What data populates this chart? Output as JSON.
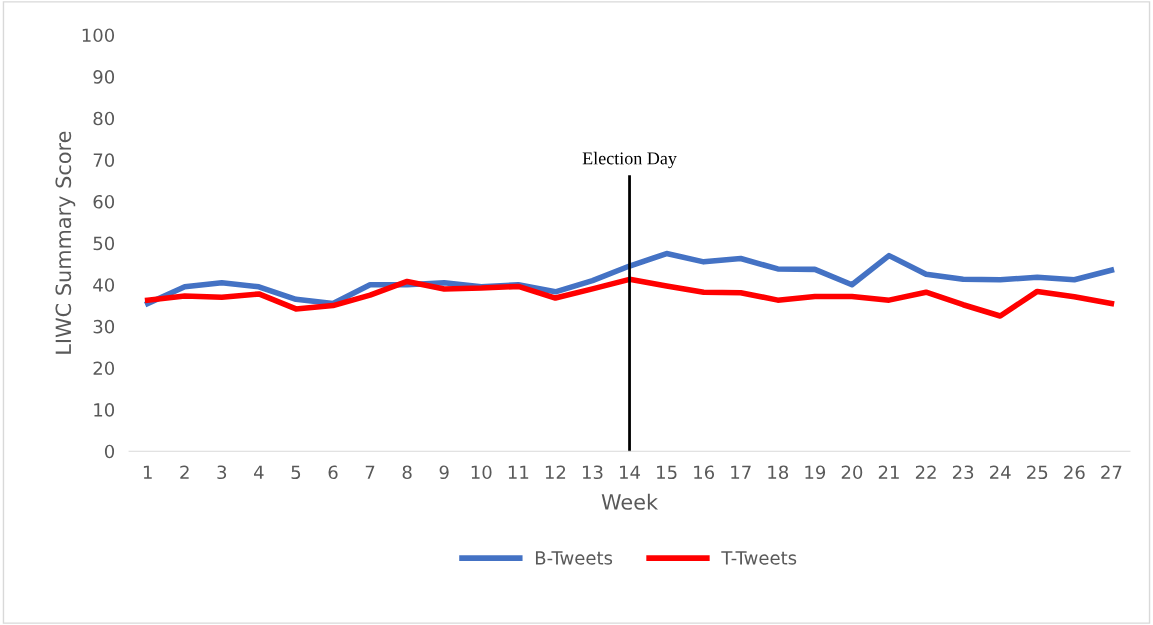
{
  "chart_data": {
    "type": "line",
    "xlabel": "Week",
    "ylabel": "LIWC Summary Score",
    "categories": [
      "1",
      "2",
      "3",
      "4",
      "5",
      "6",
      "7",
      "8",
      "9",
      "10",
      "11",
      "12",
      "13",
      "14",
      "15",
      "16",
      "17",
      "18",
      "19",
      "20",
      "21",
      "22",
      "23",
      "24",
      "25",
      "26",
      "27"
    ],
    "series": [
      {
        "name": "B-Tweets",
        "color": "#4472c4",
        "values": [
          35.5,
          39.5,
          40.5,
          39.5,
          36.5,
          35.5,
          40,
          40,
          40.5,
          39.5,
          40,
          38.3,
          41,
          44.5,
          47.5,
          45.5,
          46.3,
          43.8,
          43.7,
          40,
          47,
          42.5,
          41.3,
          41.2,
          41.8,
          41.2,
          43.5
        ]
      },
      {
        "name": "T-Tweets",
        "color": "#ff0000",
        "values": [
          36.3,
          37.3,
          37,
          37.8,
          34.2,
          35,
          37.5,
          40.8,
          39,
          39.2,
          39.6,
          36.8,
          39,
          41.3,
          39.7,
          38.2,
          38.1,
          36.3,
          37.2,
          37.2,
          36.3,
          38.2,
          35.2,
          32.5,
          38.4,
          37.1,
          35.5
        ]
      }
    ],
    "ylim": [
      0,
      100
    ],
    "yticks": [
      0,
      10,
      20,
      30,
      40,
      50,
      60,
      70,
      80,
      90,
      100
    ],
    "ref_lines": [
      {
        "axis": "x",
        "value": "14",
        "label": "Election Day",
        "color": "#000000"
      }
    ],
    "grid": false,
    "legend": "bottom",
    "marker": "none",
    "line_style": "solid"
  }
}
